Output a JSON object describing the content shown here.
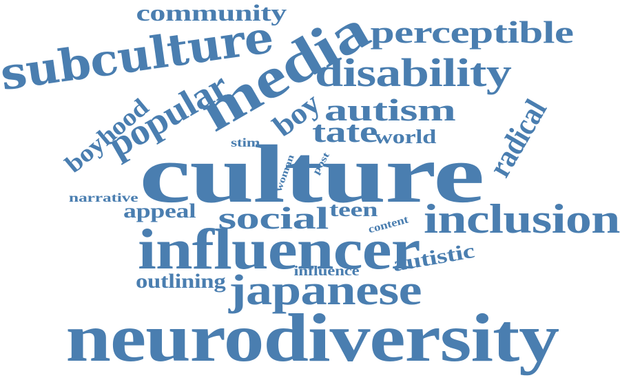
{
  "word_color": "#4a7eb0",
  "words": [
    {
      "key": "community",
      "text": "community"
    },
    {
      "key": "subculture",
      "text": "subculture"
    },
    {
      "key": "media",
      "text": "media"
    },
    {
      "key": "perceptible",
      "text": "perceptible"
    },
    {
      "key": "disability",
      "text": "disability"
    },
    {
      "key": "popular",
      "text": "popular"
    },
    {
      "key": "boyhood",
      "text": "boyhood"
    },
    {
      "key": "boy",
      "text": "boy"
    },
    {
      "key": "autism",
      "text": "autism"
    },
    {
      "key": "radical",
      "text": "radical"
    },
    {
      "key": "tate",
      "text": "tate"
    },
    {
      "key": "world",
      "text": "world"
    },
    {
      "key": "stim",
      "text": "stim"
    },
    {
      "key": "culture",
      "text": "culture"
    },
    {
      "key": "woman",
      "text": "woman"
    },
    {
      "key": "post",
      "text": "post"
    },
    {
      "key": "narrative",
      "text": "narrative"
    },
    {
      "key": "appeal",
      "text": "appeal"
    },
    {
      "key": "social",
      "text": "social"
    },
    {
      "key": "teen",
      "text": "teen"
    },
    {
      "key": "content",
      "text": "content"
    },
    {
      "key": "inclusion",
      "text": "inclusion"
    },
    {
      "key": "influencer",
      "text": "influencer"
    },
    {
      "key": "autistic",
      "text": "autistic"
    },
    {
      "key": "influence",
      "text": "influence"
    },
    {
      "key": "outlining",
      "text": "outlining"
    },
    {
      "key": "japanese",
      "text": "japanese"
    },
    {
      "key": "neurodiversity",
      "text": "neurodiversity"
    }
  ]
}
